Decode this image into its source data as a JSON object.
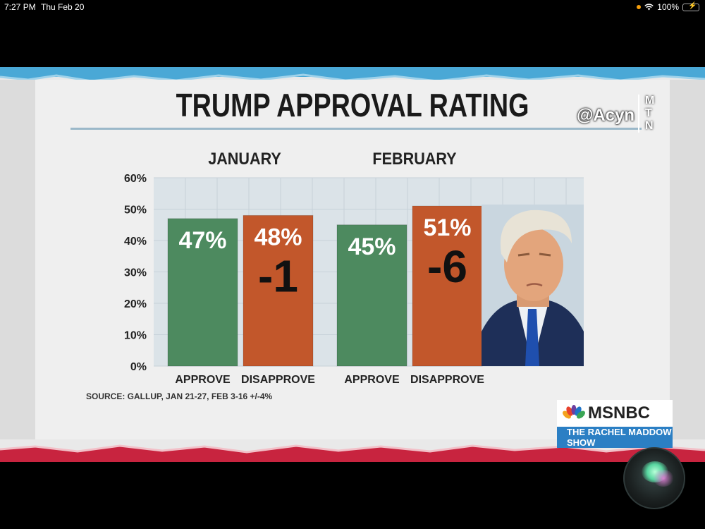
{
  "status_bar": {
    "time": "7:27 PM",
    "date": "Thu Feb 20",
    "battery": "100%"
  },
  "broadcast": {
    "title": "TRUMP APPROVAL RATING",
    "watermark": "@Acyn",
    "watermark_badge": [
      "M",
      "T",
      "N"
    ],
    "source": "SOURCE: GALLUP, JAN 21-27, FEB 3-16 +/-4%",
    "logo_brand": "MSNBC",
    "logo_show": "THE RACHEL MADDOW SHOW"
  },
  "colors": {
    "approve": "#4d8a5f",
    "disapprove": "#c2572b",
    "plot_bg": "#dbe3e8",
    "bottom_band": "#c8243f",
    "top_band": "#4aa8d6"
  },
  "chart_data": {
    "type": "bar",
    "title": "TRUMP APPROVAL RATING",
    "ylim": [
      0,
      60
    ],
    "yticks": [
      "0%",
      "10%",
      "20%",
      "30%",
      "40%",
      "50%",
      "60%"
    ],
    "grid": true,
    "groups": [
      {
        "name": "JANUARY",
        "net": "-1",
        "bars": [
          {
            "category": "APPROVE",
            "value": 47,
            "label": "47%"
          },
          {
            "category": "DISAPPROVE",
            "value": 48,
            "label": "48%"
          }
        ]
      },
      {
        "name": "FEBRUARY",
        "net": "-6",
        "bars": [
          {
            "category": "APPROVE",
            "value": 45,
            "label": "45%"
          },
          {
            "category": "DISAPPROVE",
            "value": 51,
            "label": "51%"
          }
        ]
      }
    ]
  }
}
